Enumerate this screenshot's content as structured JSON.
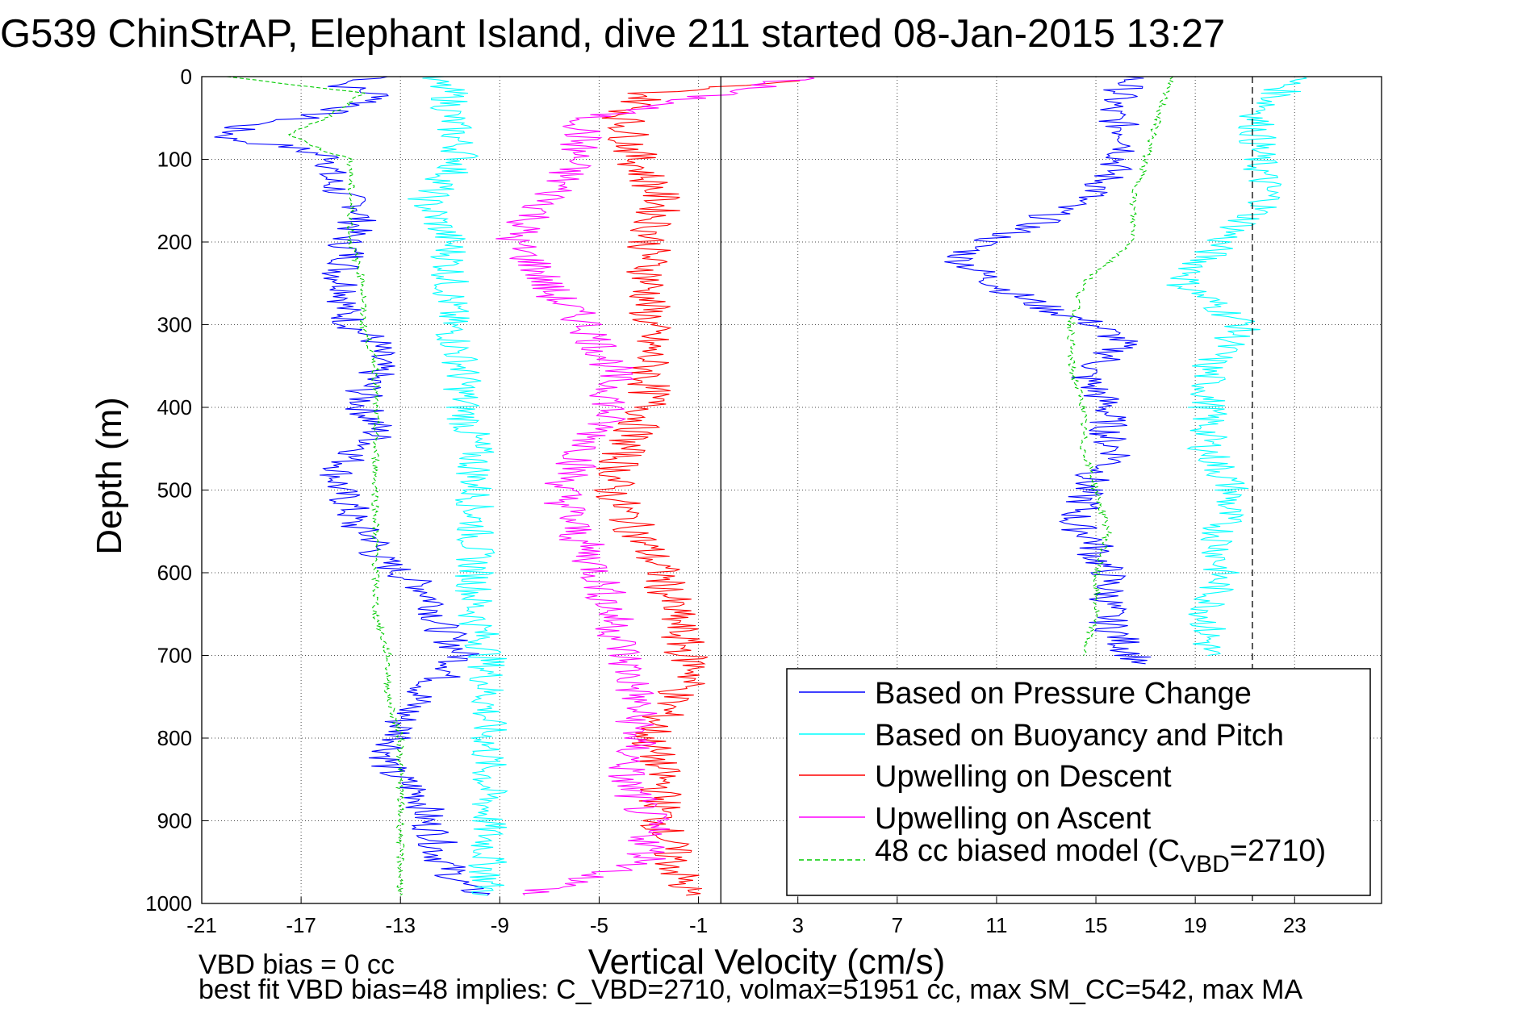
{
  "chart_data": {
    "type": "line",
    "title": "G539 ChinStrAP, Elephant Island, dive 211 started 08-Jan-2015 13:27",
    "xlabel": "Vertical Velocity (cm/s)",
    "ylabel": "Depth (m)",
    "xlim": [
      -21,
      26.5
    ],
    "ylim": [
      1000,
      0
    ],
    "x_ticks": [
      -21,
      -17,
      -13,
      -9,
      -5,
      -1,
      3,
      7,
      11,
      15,
      19,
      23
    ],
    "y_ticks": [
      0,
      100,
      200,
      300,
      400,
      500,
      600,
      700,
      800,
      900,
      1000
    ],
    "grid": true,
    "legend_position": "bottom-right",
    "reference_lines": [
      {
        "x": -0.1,
        "style": "solid",
        "color": "#000000"
      },
      {
        "x": 21.3,
        "style": "dashed",
        "color": "#000000"
      }
    ],
    "series": [
      {
        "name": "Based on Pressure Change",
        "color": "#0000ff",
        "style": "solid",
        "depth": [
          0,
          10,
          25,
          40,
          50,
          60,
          75,
          85,
          100,
          120,
          140,
          160,
          180,
          200,
          220,
          240,
          260,
          280,
          300,
          320,
          340,
          360,
          380,
          400,
          420,
          440,
          460,
          480,
          500,
          520,
          540,
          560,
          580,
          600,
          620,
          640,
          660,
          680,
          700,
          720,
          740,
          760,
          780,
          800,
          820,
          840,
          860,
          880,
          900,
          920,
          940,
          960,
          980,
          990
        ],
        "descent": [
          -13.5,
          -15.5,
          -13.5,
          -15.5,
          -17,
          -19.5,
          -20,
          -17.5,
          -15.5,
          -16,
          -15.5,
          -14.5,
          -14.8,
          -15.2,
          -15,
          -15.5,
          -15,
          -15.3,
          -15,
          -14,
          -14,
          -14,
          -14.5,
          -14.5,
          -14,
          -14,
          -15,
          -15.5,
          -15.5,
          -15,
          -15,
          -14,
          -14,
          -13,
          -12,
          -11.5,
          -11.5,
          -11,
          -10.5,
          -11,
          -12,
          -12.5,
          -13,
          -13,
          -13.5,
          -13.5,
          -12.5,
          -12,
          -12,
          -11.5,
          -11.5,
          -11,
          -10.5,
          -9.5
        ],
        "ascent_depth": [
          0,
          20,
          40,
          60,
          80,
          100,
          120,
          140,
          160,
          180,
          200,
          220,
          240,
          260,
          280,
          300,
          320,
          340,
          360,
          380,
          400,
          420,
          440,
          460,
          480,
          500,
          520,
          540,
          560,
          580,
          600,
          620,
          640,
          660,
          680,
          700,
          710
        ],
        "ascent": [
          16.5,
          16,
          15.5,
          16,
          16.5,
          16,
          15.5,
          15,
          13.5,
          12.5,
          10.5,
          9.5,
          10.5,
          11.5,
          13,
          15,
          16,
          15.5,
          14.5,
          15,
          15.5,
          15.5,
          15.5,
          16,
          15,
          14.5,
          14.5,
          14,
          15,
          15,
          15.5,
          15.5,
          15.5,
          15.5,
          16,
          16.5,
          17
        ]
      },
      {
        "name": "Based on Buoyancy and Pitch",
        "color": "#00ffff",
        "style": "solid",
        "depth": [
          0,
          20,
          50,
          100,
          150,
          200,
          250,
          300,
          350,
          400,
          450,
          500,
          550,
          600,
          650,
          700,
          750,
          800,
          850,
          900,
          950,
          990
        ],
        "descent": [
          -12,
          -11,
          -11,
          -10.5,
          -12,
          -11,
          -11,
          -11,
          -10.5,
          -10.5,
          -10,
          -10,
          -10,
          -10,
          -10,
          -9.5,
          -9.5,
          -9.5,
          -9.5,
          -9.5,
          -9.5,
          -9.5
        ],
        "ascent_depth": [
          0,
          50,
          100,
          150,
          200,
          250,
          300,
          350,
          400,
          450,
          500,
          550,
          600,
          650,
          700
        ],
        "ascent": [
          23,
          21.5,
          21.5,
          22,
          20,
          18.5,
          21,
          19.5,
          19.5,
          19.5,
          20.5,
          20,
          20,
          19.5,
          19.5
        ]
      },
      {
        "name": "Upwelling on Descent",
        "color": "#ff0000",
        "style": "solid",
        "depth": [
          5,
          20,
          50,
          100,
          150,
          200,
          250,
          300,
          350,
          400,
          450,
          500,
          550,
          600,
          650,
          700,
          720,
          750,
          800,
          850,
          900,
          950,
          990
        ],
        "values": [
          2.5,
          -3,
          -4,
          -3.5,
          -2.5,
          -3,
          -3,
          -3,
          -3,
          -3,
          -4,
          -4.5,
          -3.5,
          -2.5,
          -2,
          -1.5,
          -1,
          -2,
          -3,
          -2.5,
          -2.5,
          -2,
          -1.5
        ]
      },
      {
        "name": "Upwelling on Ascent",
        "color": "#ff00ff",
        "style": "solid",
        "depth": [
          0,
          50,
          100,
          150,
          180,
          200,
          230,
          260,
          300,
          350,
          400,
          450,
          500,
          550,
          600,
          650,
          700,
          750,
          800,
          850,
          900,
          950,
          990
        ],
        "values": [
          3.5,
          -5.5,
          -6,
          -7,
          -8,
          -8.5,
          -7.5,
          -7,
          -5.5,
          -4.5,
          -4.5,
          -5.5,
          -6.5,
          -6,
          -5,
          -4.5,
          -4,
          -3.5,
          -3.5,
          -4,
          -3,
          -3,
          -8
        ]
      },
      {
        "name": "48 cc biased model (C_VBD=2710)",
        "color": "#00cc00",
        "style": "dashed",
        "depth": [
          0,
          20,
          50,
          70,
          90,
          100,
          150,
          200,
          250,
          300,
          350,
          400,
          450,
          500,
          550,
          600,
          650,
          700,
          750,
          800,
          850,
          900,
          950,
          990
        ],
        "descent": [
          -20,
          -14.5,
          -16,
          -17.5,
          -16,
          -15,
          -15,
          -15,
          -14.5,
          -14.5,
          -14,
          -14,
          -14,
          -14,
          -14,
          -14,
          -14,
          -13.5,
          -13.5,
          -13,
          -13,
          -13,
          -13,
          -13
        ],
        "ascent_depth": [
          0,
          50,
          100,
          150,
          200,
          250,
          300,
          350,
          400,
          450,
          500,
          550,
          600,
          650,
          700
        ],
        "ascent": [
          18,
          17.5,
          17,
          16.5,
          16.5,
          14.5,
          14,
          14,
          14.5,
          14.5,
          15,
          15.5,
          15,
          15,
          14.5
        ]
      }
    ],
    "legend": [
      "Based on Pressure Change",
      "Based on Buoyancy and Pitch",
      "Upwelling on Descent",
      "Upwelling on Ascent",
      "48 cc biased model (C"
    ],
    "legend_subscript": "VBD",
    "legend_suffix": "=2710)",
    "footer_line1": "VBD bias = 0 cc",
    "footer_line2": "best fit VBD bias=48 implies: C_VBD=2710, volmax=51951 cc, max SM_CC=542, max MA"
  }
}
